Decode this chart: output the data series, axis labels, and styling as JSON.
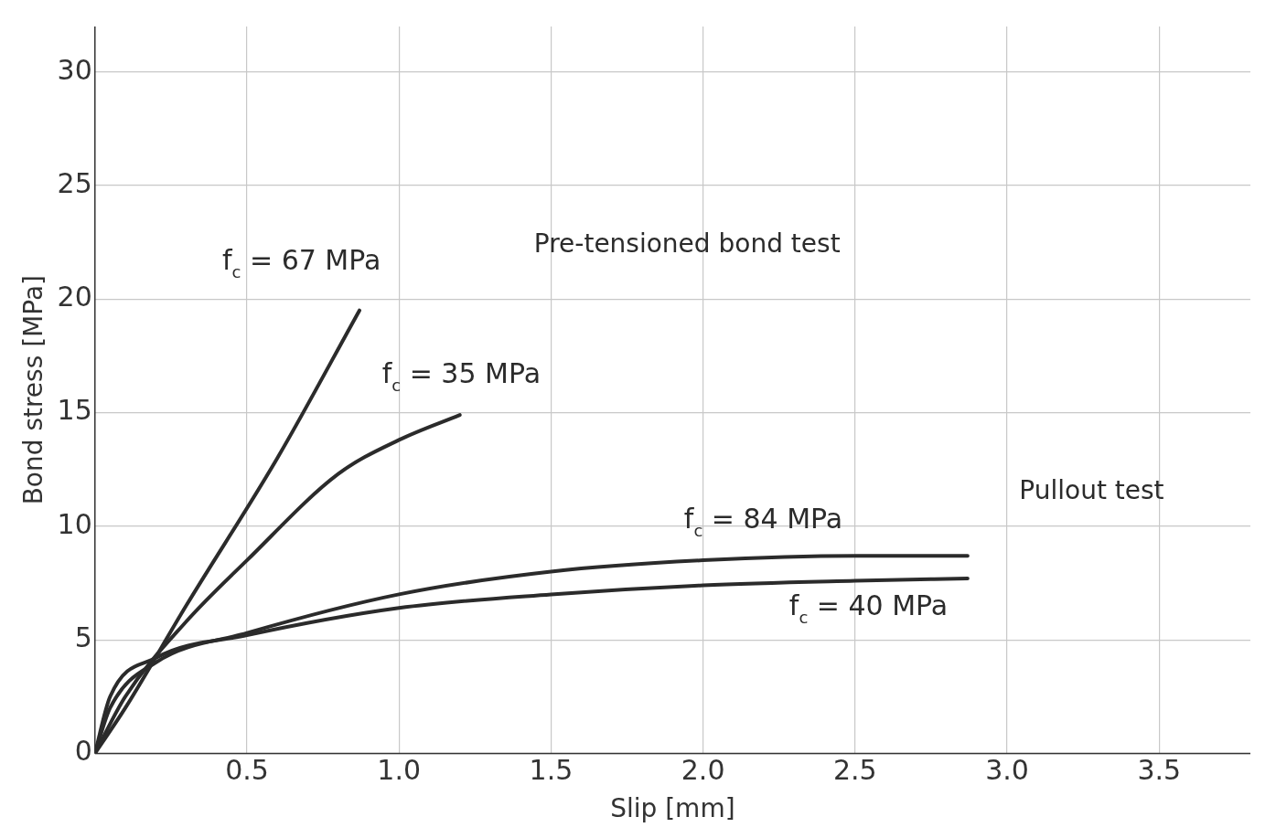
{
  "chart_data": {
    "type": "line",
    "xlabel": "Slip [mm]",
    "ylabel": "Bond stress [MPa]",
    "xlim": [
      0,
      3.8
    ],
    "ylim": [
      0,
      32
    ],
    "xticks": [
      0.5,
      {
        "value": 1,
        "label": "1.0"
      },
      1.5,
      {
        "value": 2,
        "label": "2.0"
      },
      2.5,
      {
        "value": 3,
        "label": "3.0"
      },
      3.5
    ],
    "yticks": [
      0,
      5,
      10,
      15,
      20,
      25,
      30
    ],
    "grid": true,
    "legend": false,
    "marker": "none",
    "line_style": "solid",
    "annotations": [
      "Pre-tensioned bond test",
      "Pullout test"
    ],
    "series": [
      {
        "name": "f$_{c}$ = 67 MPa",
        "color": "#2b2b2b",
        "x": [
          0,
          0.1,
          0.3,
          0.6,
          0.87
        ],
        "values": [
          0,
          2,
          6.5,
          13,
          19.5
        ]
      },
      {
        "name": "f$_{c}$ = 35 MPa",
        "color": "#2b2b2b",
        "x": [
          0,
          0.1,
          0.3,
          0.5,
          0.8,
          1.0,
          1.2
        ],
        "values": [
          0,
          2.5,
          5.8,
          8.5,
          12.3,
          13.8,
          14.9
        ]
      },
      {
        "name": "f$_{c}$ = 84 MPa",
        "color": "#2b2b2b",
        "x": [
          0,
          0.05,
          0.2,
          0.5,
          1.0,
          1.5,
          2.0,
          2.5,
          2.87
        ],
        "values": [
          0,
          2,
          4,
          5.3,
          7,
          8,
          8.5,
          8.7,
          8.7
        ]
      },
      {
        "name": "f$_{c}$ = 40 MPa",
        "color": "#2b2b2b",
        "x": [
          0,
          0.05,
          0.2,
          0.5,
          1.0,
          1.5,
          2.0,
          2.5,
          2.87
        ],
        "values": [
          0,
          2.5,
          4.2,
          5.2,
          6.4,
          7,
          7.4,
          7.6,
          7.7
        ]
      }
    ]
  }
}
